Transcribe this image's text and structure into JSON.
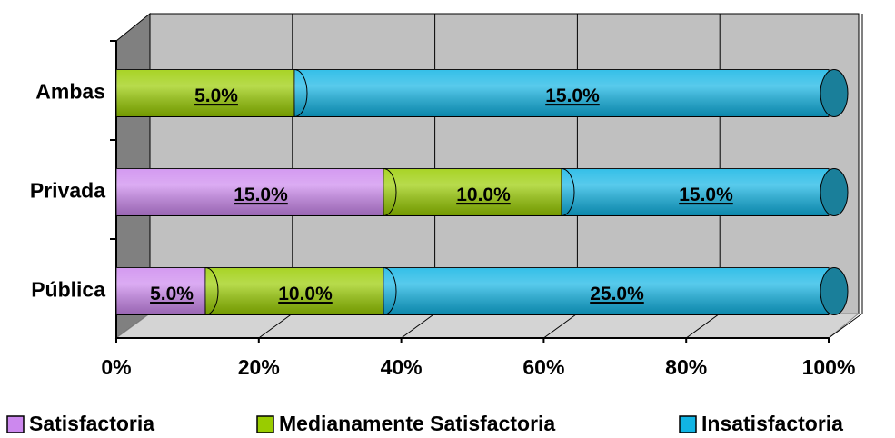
{
  "chart_data": {
    "type": "bar",
    "orientation": "horizontal",
    "stacked": "percent",
    "categories": [
      "Ambas",
      "Privada",
      "Pública"
    ],
    "series": [
      {
        "name": "Satisfactoria",
        "color": "#cc88ee",
        "values": [
          0,
          15,
          5
        ],
        "value_labels": [
          null,
          "15.0%",
          "5.0%"
        ]
      },
      {
        "name": "Medianamente Satisfactoria",
        "color": "#99cc00",
        "values": [
          5,
          10,
          10
        ],
        "value_labels": [
          "5.0%",
          "10.0%",
          "10.0%"
        ]
      },
      {
        "name": "Insatisfactoria",
        "color": "#11b4e4",
        "values": [
          15,
          15,
          25
        ],
        "value_labels": [
          "15.0%",
          "15.0%",
          "25.0%"
        ]
      }
    ],
    "xlim": [
      0,
      100
    ],
    "xticks": [
      {
        "value": 0,
        "label": "0%"
      },
      {
        "value": 20,
        "label": "20%"
      },
      {
        "value": 40,
        "label": "40%"
      },
      {
        "value": 60,
        "label": "60%"
      },
      {
        "value": 80,
        "label": "80%"
      },
      {
        "value": 100,
        "label": "100%"
      }
    ],
    "grid": true,
    "legend": "bottom"
  }
}
